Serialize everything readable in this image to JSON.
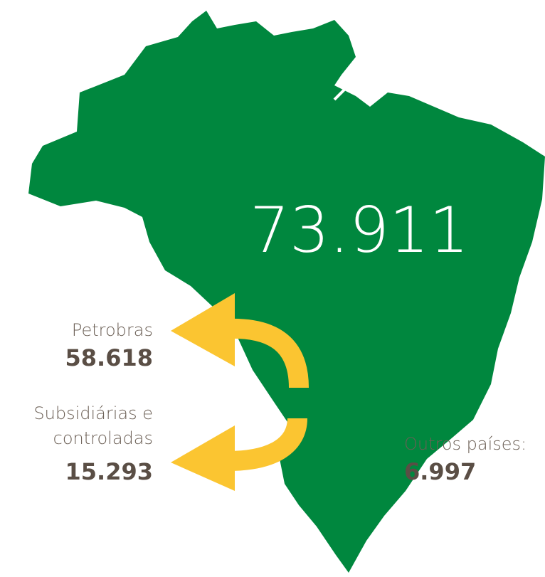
{
  "total": "73.911",
  "items": [
    {
      "label_lines": [
        "Petrobras"
      ],
      "value": "58.618"
    },
    {
      "label_lines": [
        "Subsidiárias e",
        "controladas"
      ],
      "value": "15.293"
    },
    {
      "label_lines": [
        "Outros países:"
      ],
      "value": "6.997"
    }
  ]
}
